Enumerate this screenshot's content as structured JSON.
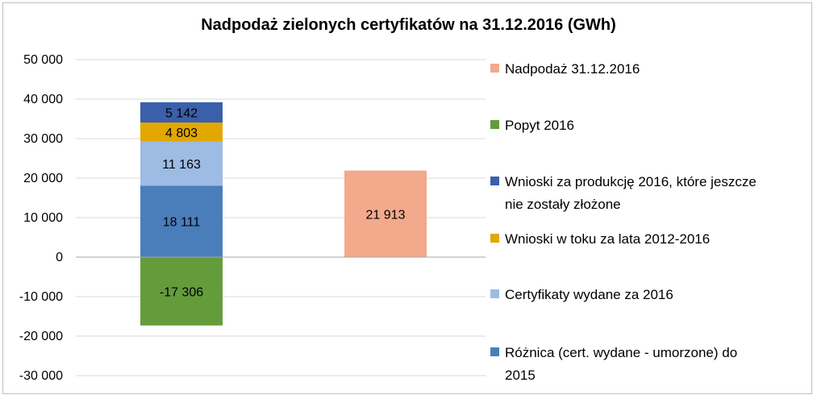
{
  "chart_data": {
    "type": "bar",
    "stacked": true,
    "title": "Nadpodaż zielonych certyfikatów na 31.12.2016 (GWh)",
    "xlabel": "",
    "ylabel": "",
    "ylim": [
      -30000,
      50000
    ],
    "yticks": [
      50000,
      40000,
      30000,
      20000,
      10000,
      0,
      -10000,
      -20000,
      -30000
    ],
    "ytick_labels": [
      "50 000",
      "40 000",
      "30 000",
      "20 000",
      "10 000",
      "0",
      "-10 000",
      "-20 000",
      "-30 000"
    ],
    "grid": true,
    "legend_position": "right",
    "categories": [
      "",
      ""
    ],
    "series": [
      {
        "name": "Różnica (cert. wydane - umorzone) do 2015",
        "color": "#4a7ebb",
        "values": [
          18111,
          0
        ],
        "labels": [
          "18 111",
          ""
        ]
      },
      {
        "name": "Certyfikaty wydane za 2016",
        "color": "#9dbbe3",
        "values": [
          11163,
          0
        ],
        "labels": [
          "11 163",
          ""
        ]
      },
      {
        "name": "Wnioski w toku za lata 2012-2016",
        "color": "#e2a700",
        "values": [
          4803,
          0
        ],
        "labels": [
          "4 803",
          ""
        ]
      },
      {
        "name": "Wnioski za produkcję 2016, które jeszcze nie zostały złożone",
        "color": "#3a5fab",
        "values": [
          5142,
          0
        ],
        "labels": [
          "5 142",
          ""
        ]
      },
      {
        "name": "Popyt 2016",
        "color": "#649c3c",
        "values": [
          -17306,
          0
        ],
        "labels": [
          "-17 306",
          ""
        ]
      },
      {
        "name": "Nadpodaż 31.12.2016",
        "color": "#f2a98c",
        "values": [
          0,
          21913
        ],
        "labels": [
          "",
          "21 913"
        ]
      }
    ],
    "legend_order": [
      5,
      4,
      3,
      2,
      1,
      0
    ],
    "legend_lines": [
      [
        "Nadpodaż 31.12.2016"
      ],
      [
        "Popyt 2016"
      ],
      [
        "Wnioski za produkcję 2016, które jeszcze",
        "nie zostały złożone"
      ],
      [
        "Wnioski w toku za lata 2012-2016"
      ],
      [
        "Certyfikaty wydane za 2016"
      ],
      [
        "Różnica (cert. wydane - umorzone) do",
        "2015"
      ]
    ]
  }
}
